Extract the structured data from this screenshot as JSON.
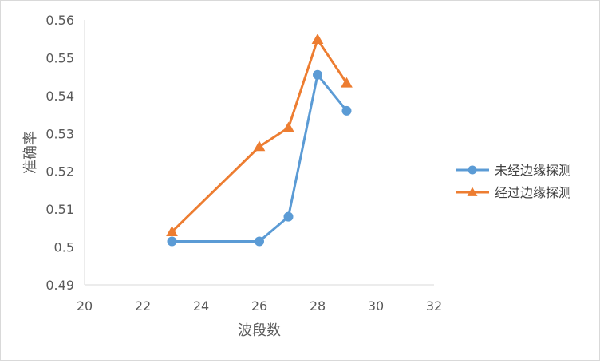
{
  "chart_data": {
    "type": "line",
    "title": "",
    "xlabel": "波段数",
    "ylabel": "准确率",
    "xlim": [
      20,
      32
    ],
    "ylim": [
      0.49,
      0.56
    ],
    "x_ticks": [
      "20",
      "22",
      "24",
      "26",
      "28",
      "30",
      "32"
    ],
    "y_ticks": [
      "0.49",
      "0.5",
      "0.51",
      "0.52",
      "0.53",
      "0.54",
      "0.55",
      "0.56"
    ],
    "legend_position": "right",
    "grid": false,
    "series": [
      {
        "name": "未经边缘探测",
        "color": "#5b9bd5",
        "marker": "circle",
        "x": [
          23,
          26,
          27,
          28,
          29
        ],
        "values": [
          0.5015,
          0.5015,
          0.508,
          0.5455,
          0.536
        ]
      },
      {
        "name": "经过边缘探测",
        "color": "#ed7d31",
        "marker": "triangle",
        "x": [
          23,
          26,
          27,
          28,
          29
        ],
        "values": [
          0.504,
          0.5265,
          0.5315,
          0.5548,
          0.5433
        ]
      }
    ]
  }
}
